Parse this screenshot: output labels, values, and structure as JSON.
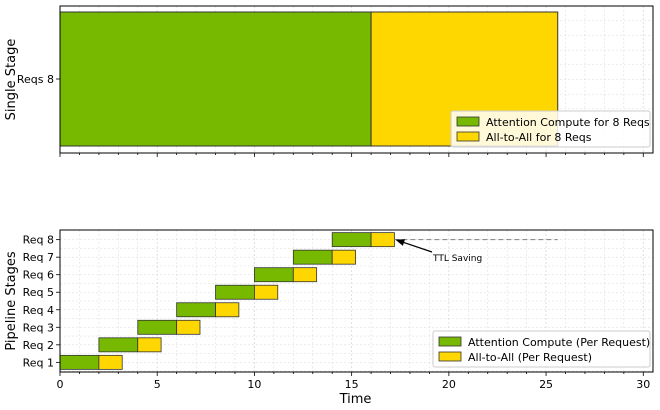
{
  "colors": {
    "compute": "#76B900",
    "all_to_all": "#FFD700",
    "edge": "#333333",
    "grid": "#d9d9d9",
    "dashed": "#808080"
  },
  "chart_data": [
    {
      "type": "bar",
      "orientation": "horizontal-stacked",
      "categories": [
        "Reqs 8"
      ],
      "series": [
        {
          "name": "Attention Compute for 8 Reqs",
          "start": [
            0
          ],
          "duration": [
            16
          ],
          "color": "#76B900"
        },
        {
          "name": "All-to-All for 8 Reqs",
          "start": [
            16
          ],
          "duration": [
            9.6
          ],
          "color": "#FFD700"
        }
      ],
      "title": "",
      "xlabel": "",
      "ylabel": "Single Stage",
      "xlim": [
        0,
        30.5
      ],
      "grid": true,
      "legend_position": "lower-right"
    },
    {
      "type": "bar",
      "orientation": "horizontal-gantt",
      "categories": [
        "Req 1",
        "Req 2",
        "Req 3",
        "Req 4",
        "Req 5",
        "Req 6",
        "Req 7",
        "Req 8"
      ],
      "series": [
        {
          "name": "Attention Compute (Per Request)",
          "start": [
            0,
            2,
            4,
            6,
            8,
            10,
            12,
            14
          ],
          "duration": [
            2,
            2,
            2,
            2,
            2,
            2,
            2,
            2
          ],
          "color": "#76B900"
        },
        {
          "name": "All-to-All (Per Request)",
          "start": [
            2,
            4,
            6,
            8,
            10,
            12,
            14,
            16
          ],
          "duration": [
            1.2,
            1.2,
            1.2,
            1.2,
            1.2,
            1.2,
            1.2,
            1.2
          ],
          "color": "#FFD700"
        }
      ],
      "x_ticks": [
        "0",
        "5",
        "10",
        "15",
        "20",
        "25",
        "30"
      ],
      "x_tick_values": [
        0,
        5,
        10,
        15,
        20,
        25,
        30
      ],
      "xlabel": "Time",
      "ylabel": "Pipeline Stages",
      "xlim": [
        0,
        30.5
      ],
      "grid": true,
      "legend_position": "lower-right",
      "annotation": {
        "text": "TTL Saving",
        "arrow_to": [
          17.2,
          8
        ],
        "dashed_from": 17.2,
        "dashed_to": 25.6
      }
    }
  ]
}
